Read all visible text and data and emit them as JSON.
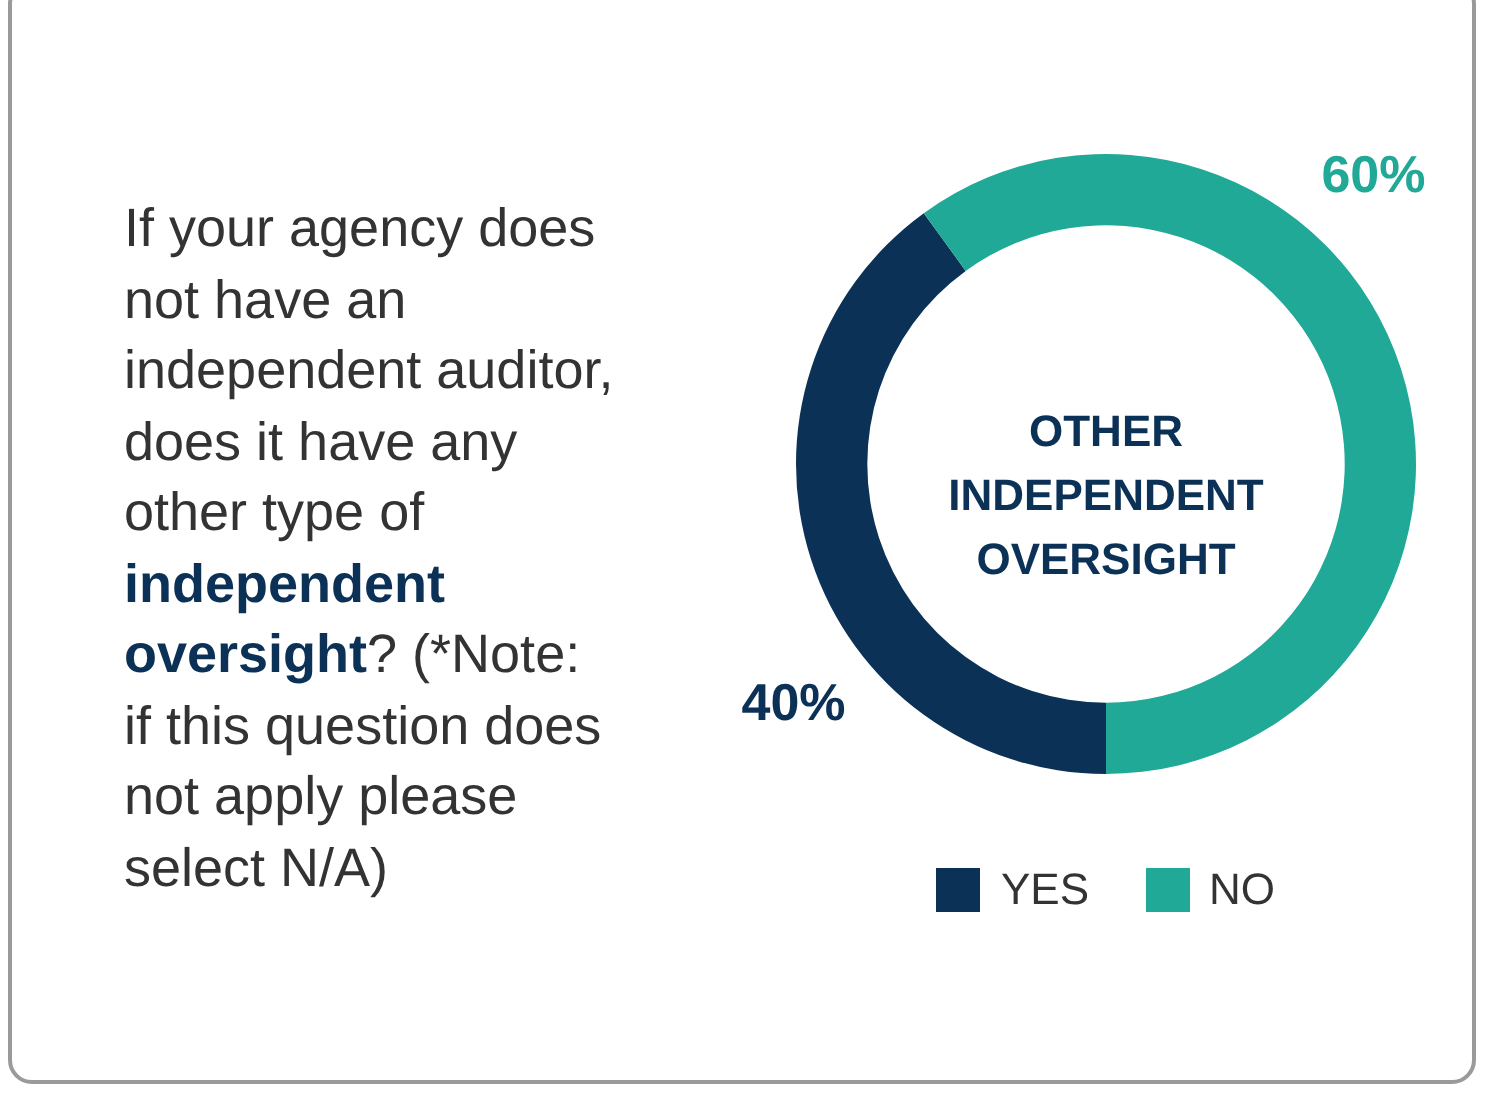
{
  "chart_data": {
    "type": "donut",
    "title": "OTHER INDEPENDENT OVERSIGHT",
    "categories": [
      "YES",
      "NO"
    ],
    "values": [
      40,
      60
    ],
    "colors": [
      "#0b3156",
      "#21a997"
    ],
    "value_labels": [
      "40%",
      "60%"
    ],
    "legend": "bottom",
    "annotations": [
      "If your agency does not have an independent auditor, does it have any other type of ",
      "independent oversight",
      "? (*Note: if this question does not apply please select N/A)"
    ]
  }
}
